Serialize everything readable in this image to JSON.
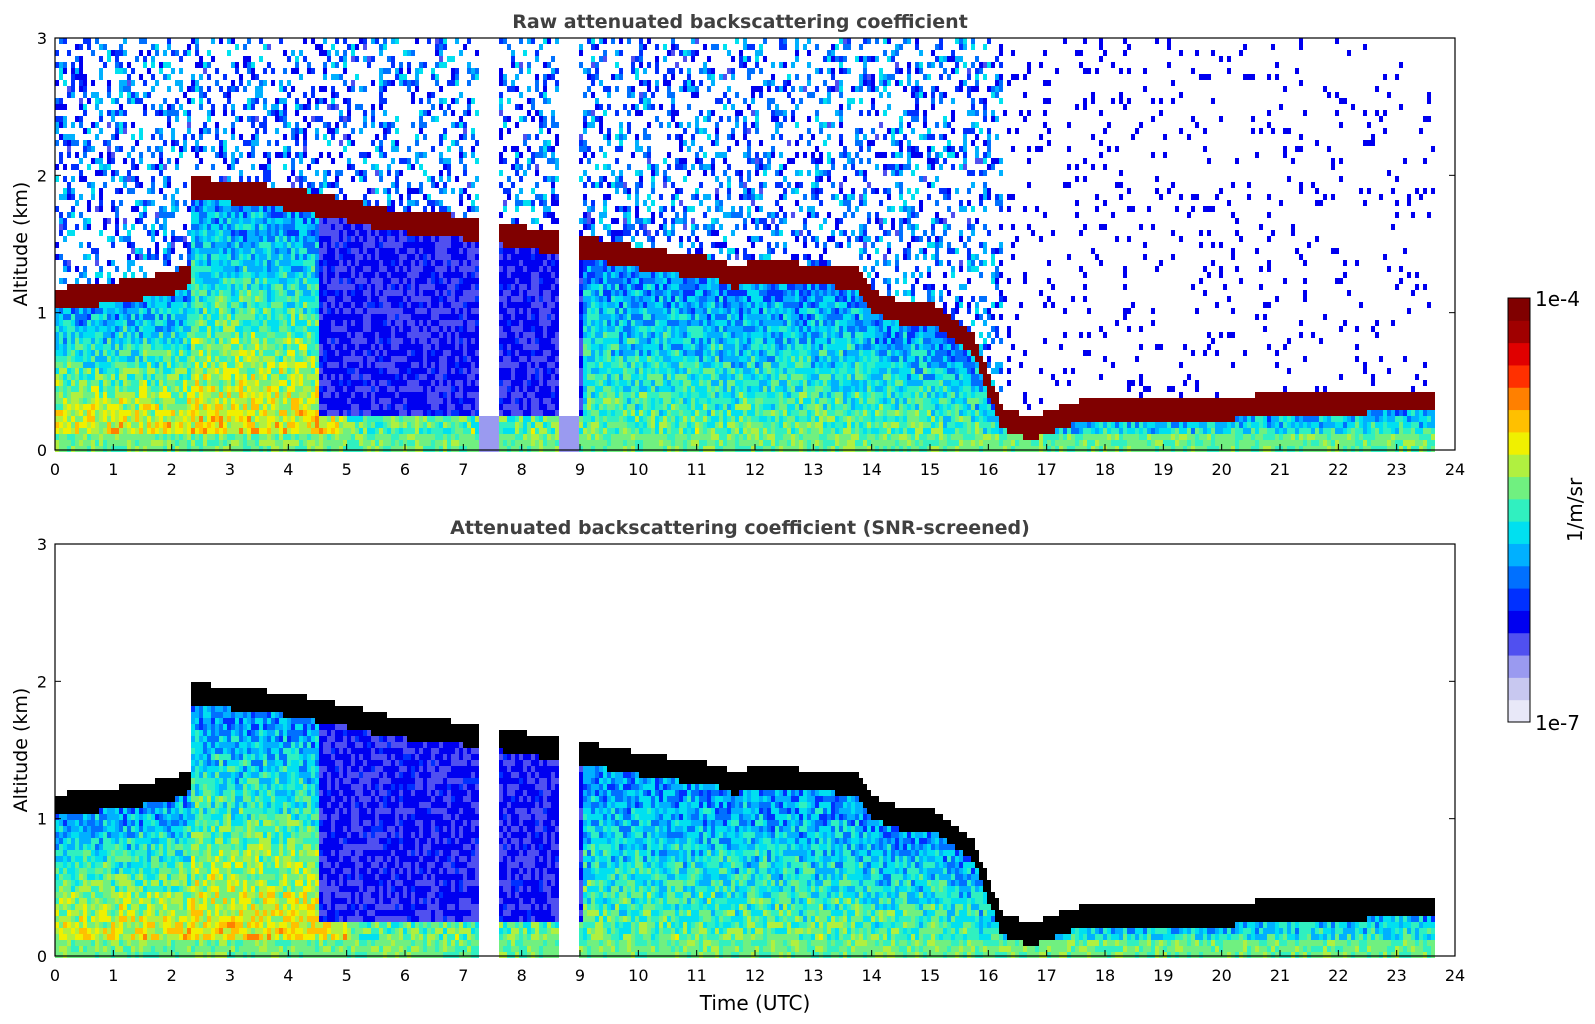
{
  "colorbar": {
    "label": "1/m/sr",
    "max_label": "1e-4",
    "min_label": "1e-7",
    "scale": "log",
    "range": [
      1e-07,
      0.0001
    ],
    "colors": [
      "#e8e8f8",
      "#c8c8f0",
      "#9a9af0",
      "#5050f0",
      "#0000f0",
      "#0030ff",
      "#0070ff",
      "#00b0ff",
      "#00e0f0",
      "#30f0c0",
      "#70f080",
      "#b0f040",
      "#f0f000",
      "#ffc000",
      "#ff8000",
      "#ff3000",
      "#e00000",
      "#a00000",
      "#800000"
    ]
  },
  "chart_data": [
    {
      "type": "heatmap",
      "title": "Raw attenuated backscattering coefficient",
      "xlabel": "",
      "ylabel": "Altitude (km)",
      "xlim": [
        0,
        24
      ],
      "ylim": [
        0,
        3
      ],
      "xticks": [
        "0",
        "1",
        "2",
        "3",
        "4",
        "5",
        "6",
        "7",
        "8",
        "9",
        "10",
        "11",
        "12",
        "13",
        "14",
        "15",
        "16",
        "17",
        "18",
        "19",
        "20",
        "21",
        "22",
        "23",
        "24"
      ],
      "yticks": [
        "0",
        "1",
        "2",
        "3"
      ],
      "data_end_time": 23.6,
      "screened": false,
      "cloud_base": [
        {
          "t": 0.0,
          "z": 1.12
        },
        {
          "t": 1.0,
          "z": 1.17
        },
        {
          "t": 2.0,
          "z": 1.24
        },
        {
          "t": 2.3,
          "z": 1.3
        },
        {
          "t": 2.3,
          "z": 1.93
        },
        {
          "t": 3.0,
          "z": 1.9
        },
        {
          "t": 4.0,
          "z": 1.85
        },
        {
          "t": 5.2,
          "z": 1.75
        },
        {
          "t": 5.6,
          "z": 1.7
        },
        {
          "t": 6.8,
          "z": 1.65
        },
        {
          "t": 9.0,
          "z": 1.5
        },
        {
          "t": 10.0,
          "z": 1.42
        },
        {
          "t": 11.4,
          "z": 1.33
        },
        {
          "t": 11.6,
          "z": 1.27
        },
        {
          "t": 12.0,
          "z": 1.33
        },
        {
          "t": 12.8,
          "z": 1.3
        },
        {
          "t": 13.7,
          "z": 1.28
        },
        {
          "t": 14.0,
          "z": 1.1
        },
        {
          "t": 14.6,
          "z": 1.0
        },
        {
          "t": 15.0,
          "z": 1.02
        },
        {
          "t": 15.7,
          "z": 0.8
        },
        {
          "t": 16.2,
          "z": 0.25
        },
        {
          "t": 16.7,
          "z": 0.18
        },
        {
          "t": 17.5,
          "z": 0.3
        },
        {
          "t": 20.0,
          "z": 0.32
        },
        {
          "t": 21.0,
          "z": 0.36
        },
        {
          "t": 23.6,
          "z": 0.38
        }
      ]
    },
    {
      "type": "heatmap",
      "title": "Attenuated backscattering coefficient (SNR-screened)",
      "xlabel": "Time (UTC)",
      "ylabel": "Altitude (km)",
      "xlim": [
        0,
        24
      ],
      "ylim": [
        0,
        3
      ],
      "xticks": [
        "0",
        "1",
        "2",
        "3",
        "4",
        "5",
        "6",
        "7",
        "8",
        "9",
        "10",
        "11",
        "12",
        "13",
        "14",
        "15",
        "16",
        "17",
        "18",
        "19",
        "20",
        "21",
        "22",
        "23",
        "24"
      ],
      "yticks": [
        "0",
        "1",
        "2",
        "3"
      ],
      "data_end_time": 23.6,
      "screened": true,
      "cloud_base": [
        {
          "t": 0.0,
          "z": 1.12
        },
        {
          "t": 1.0,
          "z": 1.17
        },
        {
          "t": 2.0,
          "z": 1.24
        },
        {
          "t": 2.3,
          "z": 1.3
        },
        {
          "t": 2.3,
          "z": 1.93
        },
        {
          "t": 3.0,
          "z": 1.9
        },
        {
          "t": 4.0,
          "z": 1.85
        },
        {
          "t": 5.2,
          "z": 1.75
        },
        {
          "t": 5.6,
          "z": 1.7
        },
        {
          "t": 6.8,
          "z": 1.65
        },
        {
          "t": 9.0,
          "z": 1.5
        },
        {
          "t": 10.0,
          "z": 1.42
        },
        {
          "t": 11.4,
          "z": 1.33
        },
        {
          "t": 11.6,
          "z": 1.27
        },
        {
          "t": 12.0,
          "z": 1.33
        },
        {
          "t": 12.8,
          "z": 1.3
        },
        {
          "t": 13.7,
          "z": 1.28
        },
        {
          "t": 14.0,
          "z": 1.1
        },
        {
          "t": 14.6,
          "z": 1.0
        },
        {
          "t": 15.0,
          "z": 1.02
        },
        {
          "t": 15.7,
          "z": 0.8
        },
        {
          "t": 16.2,
          "z": 0.25
        },
        {
          "t": 16.7,
          "z": 0.18
        },
        {
          "t": 17.5,
          "z": 0.3
        },
        {
          "t": 20.0,
          "z": 0.32
        },
        {
          "t": 21.0,
          "z": 0.36
        },
        {
          "t": 23.6,
          "z": 0.38
        }
      ]
    }
  ]
}
